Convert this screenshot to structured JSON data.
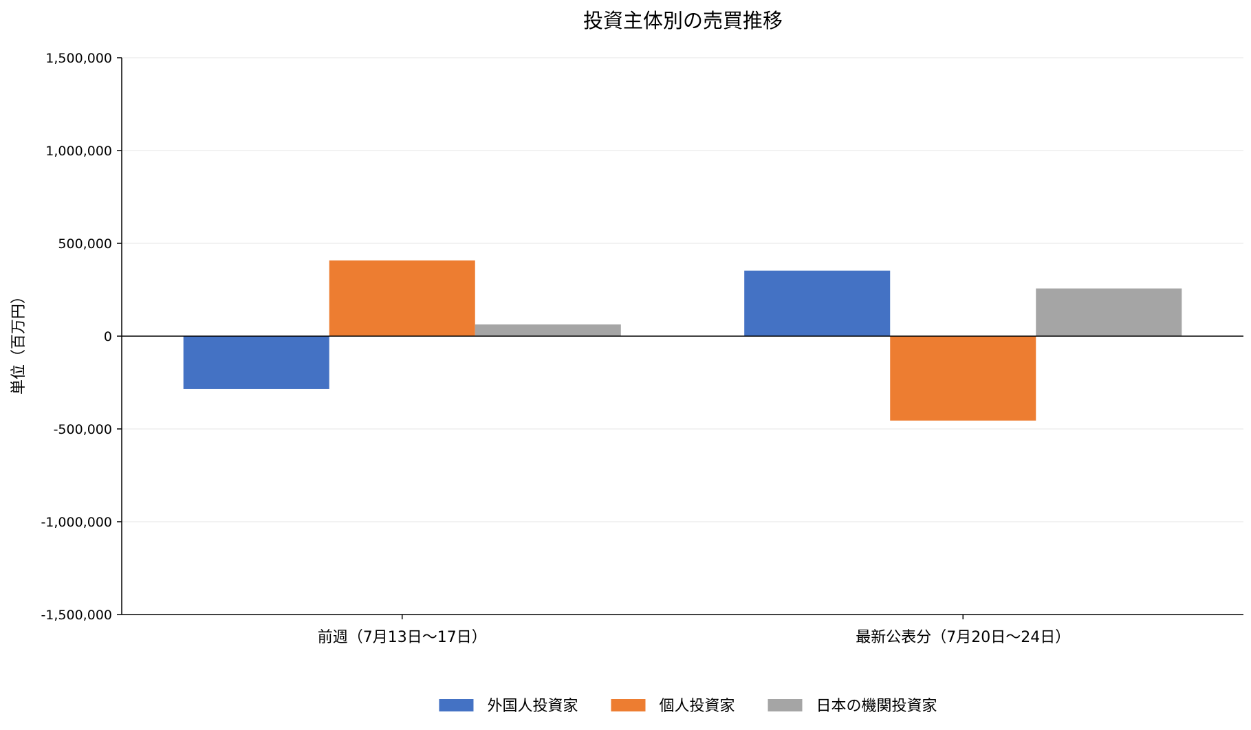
{
  "chart_data": {
    "type": "bar",
    "title": "投資主体別の売買推移",
    "xlabel": "",
    "ylabel": "単位（百万円）",
    "categories": [
      "前週（7月13日～17日）",
      "最新公表分（7月20日～24日）"
    ],
    "series": [
      {
        "name": "外国人投資家",
        "color": "#4472C4",
        "values": [
          -285000,
          353000
        ]
      },
      {
        "name": "個人投資家",
        "color": "#ED7D31",
        "values": [
          408000,
          -455000
        ]
      },
      {
        "name": "日本の機関投資家",
        "color": "#A5A5A5",
        "values": [
          63000,
          257000
        ]
      }
    ],
    "ylim": [
      -1500000,
      1500000
    ],
    "yticks": [
      -1500000,
      -1000000,
      -500000,
      0,
      500000,
      1000000,
      1500000
    ],
    "ytick_labels": [
      "-1,500,000",
      "-1,000,000",
      "-500,000",
      "0",
      "500,000",
      "1,000,000",
      "1,500,000"
    ],
    "grid": true,
    "legend_position": "bottom-center"
  }
}
